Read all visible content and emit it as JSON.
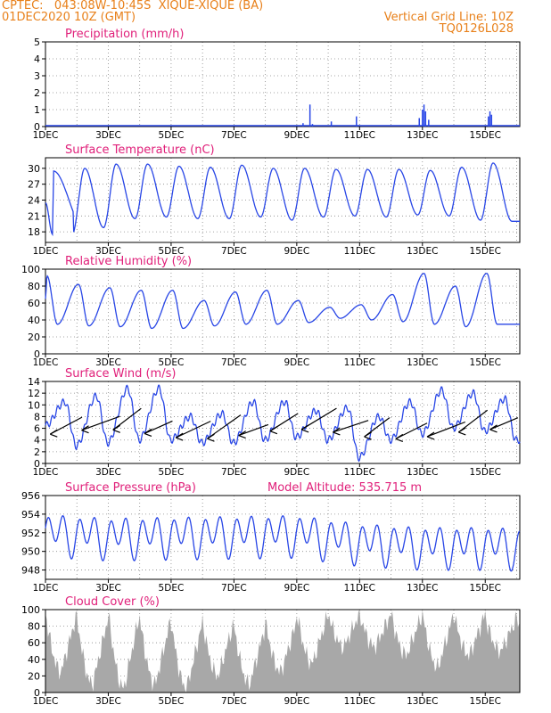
{
  "header": {
    "line1_left": "CPTEC:   043:08W-10:45S  XIQUE-XIQUE (BA)",
    "line2_left": "01DEC2020 10Z (GMT)",
    "line1_right": "Vertical Grid Line: 10Z",
    "line2_right": "TQ0126L028",
    "model_altitude": "Model Altitude: 535.715 m"
  },
  "colors": {
    "header": "#e8801a",
    "title": "#e0207a",
    "line": "#2846e6",
    "cloud": "#a8a8a8",
    "wind_arrow": "#000000"
  },
  "x_axis": {
    "ticks": [
      "1DEC",
      "3DEC",
      "5DEC",
      "7DEC",
      "9DEC",
      "11DEC",
      "13DEC",
      "15DEC"
    ],
    "tick_days": [
      0,
      2,
      4,
      6,
      8,
      10,
      12,
      14
    ],
    "year_label": "2020",
    "range_days": [
      0,
      15.1
    ],
    "grid": "vertical dotted at every day at 10Z"
  },
  "chart_data": [
    {
      "type": "bar",
      "title": "Precipitation (mm/h)",
      "ylim": [
        0,
        5
      ],
      "yticks": [
        0,
        1,
        2,
        3,
        4,
        5
      ],
      "events": [
        {
          "day": 8.2,
          "value": 0.2
        },
        {
          "day": 8.42,
          "value": 1.3
        },
        {
          "day": 8.5,
          "value": 0.15
        },
        {
          "day": 9.1,
          "value": 0.3
        },
        {
          "day": 9.9,
          "value": 0.6
        },
        {
          "day": 11.9,
          "value": 0.5
        },
        {
          "day": 12.0,
          "value": 1.0
        },
        {
          "day": 12.05,
          "value": 1.3
        },
        {
          "day": 12.1,
          "value": 0.9
        },
        {
          "day": 12.2,
          "value": 0.4
        },
        {
          "day": 14.1,
          "value": 0.6
        },
        {
          "day": 14.15,
          "value": 0.9
        },
        {
          "day": 14.2,
          "value": 0.7
        }
      ]
    },
    {
      "type": "line",
      "title": "Surface Temperature (nC)",
      "ylim": [
        16,
        32
      ],
      "yticks": [
        18,
        21,
        24,
        27,
        30
      ],
      "daily": [
        {
          "min": 17.5,
          "max": 29.5
        },
        {
          "min": 18.8,
          "max": 30.0
        },
        {
          "min": 20.5,
          "max": 30.8
        },
        {
          "min": 20.8,
          "max": 30.8
        },
        {
          "min": 20.5,
          "max": 30.4
        },
        {
          "min": 20.5,
          "max": 30.2
        },
        {
          "min": 20.8,
          "max": 30.6
        },
        {
          "min": 20.2,
          "max": 30.0
        },
        {
          "min": 20.8,
          "max": 30.0
        },
        {
          "min": 21.0,
          "max": 29.8
        },
        {
          "min": 20.8,
          "max": 29.8
        },
        {
          "min": 21.2,
          "max": 29.8
        },
        {
          "min": 21.0,
          "max": 29.6
        },
        {
          "min": 20.2,
          "max": 30.2
        },
        {
          "min": 20.0,
          "max": 31.0
        }
      ],
      "start_value": 23.5
    },
    {
      "type": "line",
      "title": "Relative Humidity (%)",
      "ylim": [
        0,
        100
      ],
      "yticks": [
        0,
        20,
        40,
        60,
        80,
        100
      ],
      "daily": [
        {
          "max": 92,
          "min": 35
        },
        {
          "max": 82,
          "min": 33
        },
        {
          "max": 78,
          "min": 32
        },
        {
          "max": 75,
          "min": 30
        },
        {
          "max": 75,
          "min": 30
        },
        {
          "max": 63,
          "min": 33
        },
        {
          "max": 73,
          "min": 35
        },
        {
          "max": 75,
          "min": 35
        },
        {
          "max": 63,
          "min": 37
        },
        {
          "max": 55,
          "min": 42
        },
        {
          "max": 58,
          "min": 40
        },
        {
          "max": 70,
          "min": 38
        },
        {
          "max": 95,
          "min": 35
        },
        {
          "max": 80,
          "min": 32
        },
        {
          "max": 95,
          "min": 35
        }
      ],
      "start_value": 65
    },
    {
      "type": "line",
      "title": "Surface Wind (m/s)",
      "ylim": [
        0,
        14
      ],
      "yticks": [
        0,
        2,
        4,
        6,
        8,
        10,
        12,
        14
      ],
      "daily": [
        {
          "max": 10.5,
          "min": 3.0
        },
        {
          "max": 11.5,
          "min": 3.5
        },
        {
          "max": 12.8,
          "min": 4.0
        },
        {
          "max": 12.8,
          "min": 4.0
        },
        {
          "max": 8.0,
          "min": 3.5
        },
        {
          "max": 8.5,
          "min": 3.5
        },
        {
          "max": 10.5,
          "min": 4.0
        },
        {
          "max": 10.5,
          "min": 4.5
        },
        {
          "max": 9.0,
          "min": 4.0
        },
        {
          "max": 9.5,
          "min": 1.0
        },
        {
          "max": 8.0,
          "min": 4.0
        },
        {
          "max": 10.5,
          "min": 5.0
        },
        {
          "max": 12.5,
          "min": 6.0
        },
        {
          "max": 12.0,
          "min": 5.5
        },
        {
          "max": 11.0,
          "min": 4.0
        }
      ],
      "start_value": 6.5,
      "arrows": "dailyAt10Z direction from E-SE"
    },
    {
      "type": "line",
      "title": "Surface Pressure (hPa)",
      "ylim": [
        947,
        956
      ],
      "yticks": [
        948,
        950,
        952,
        954,
        956
      ],
      "start_value": 952.0,
      "semidiurnal_amplitude": 2.5,
      "trend": [
        {
          "day": 0,
          "value": 952.0
        },
        {
          "day": 2,
          "value": 951.6
        },
        {
          "day": 4,
          "value": 951.7
        },
        {
          "day": 6,
          "value": 951.8
        },
        {
          "day": 8,
          "value": 951.9
        },
        {
          "day": 10,
          "value": 951.0
        },
        {
          "day": 12,
          "value": 950.6
        },
        {
          "day": 14,
          "value": 950.6
        },
        {
          "day": 15,
          "value": 950.5
        }
      ]
    },
    {
      "type": "area",
      "title": "Cloud Cover (%)",
      "ylim": [
        0,
        100
      ],
      "yticks": [
        0,
        20,
        40,
        60,
        80,
        100
      ],
      "daily": [
        {
          "high": 95,
          "low": 25
        },
        {
          "high": 90,
          "low": 10
        },
        {
          "high": 95,
          "low": 5
        },
        {
          "high": 90,
          "low": 10
        },
        {
          "high": 85,
          "low": 5
        },
        {
          "high": 85,
          "low": 20
        },
        {
          "high": 80,
          "low": 10
        },
        {
          "high": 85,
          "low": 25
        },
        {
          "high": 95,
          "low": 35
        },
        {
          "high": 95,
          "low": 55
        },
        {
          "high": 95,
          "low": 55
        },
        {
          "high": 95,
          "low": 45
        },
        {
          "high": 95,
          "low": 30
        },
        {
          "high": 95,
          "low": 45
        },
        {
          "high": 90,
          "low": 50
        }
      ]
    }
  ]
}
